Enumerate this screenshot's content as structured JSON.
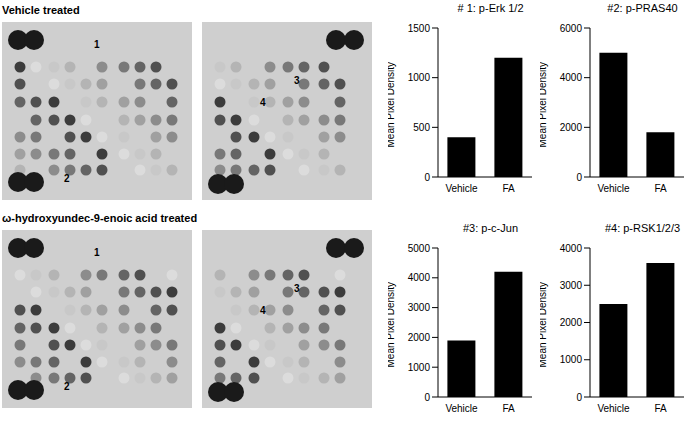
{
  "chart_data": [
    {
      "type": "bar",
      "title": "# 1: p-Erk 1/2",
      "ylabel": "Mean Pixel Density",
      "categories": [
        "Vehicle",
        "FA"
      ],
      "values": [
        400,
        1200
      ],
      "color": "#000000",
      "ylim": [
        0,
        1500
      ],
      "yticks": [
        0,
        500,
        1000,
        1500
      ]
    },
    {
      "type": "bar",
      "title": "#2: p-PRAS40",
      "ylabel": "Mean Pixel Density",
      "categories": [
        "Vehicle",
        "FA"
      ],
      "values": [
        5000,
        1800
      ],
      "color": "#000000",
      "ylim": [
        0,
        6000
      ],
      "yticks": [
        0,
        2000,
        4000,
        6000
      ]
    },
    {
      "type": "bar",
      "title": "#3: p-c-Jun",
      "ylabel": "Mean Pixel Density",
      "categories": [
        "Vehicle",
        "FA"
      ],
      "values": [
        1900,
        4200
      ],
      "color": "#000000",
      "ylim": [
        0,
        5000
      ],
      "yticks": [
        0,
        1000,
        2000,
        3000,
        4000,
        5000
      ]
    },
    {
      "type": "bar",
      "title": "#4: p-RSK1/2/3",
      "ylabel": "Mean Pixel Density",
      "categories": [
        "Vehicle",
        "FA"
      ],
      "values": [
        2500,
        3600
      ],
      "color": "#000000",
      "ylim": [
        0,
        4000
      ],
      "yticks": [
        0,
        1000,
        2000,
        3000,
        4000
      ]
    }
  ],
  "blots": [
    {
      "title": "Vehicle treated",
      "markers": [
        "1",
        "2",
        "3",
        "4"
      ]
    },
    {
      "title": "ω-hydroxyundec-9-enoic acid treated",
      "markers": [
        "1",
        "2",
        "3",
        "4"
      ]
    }
  ]
}
